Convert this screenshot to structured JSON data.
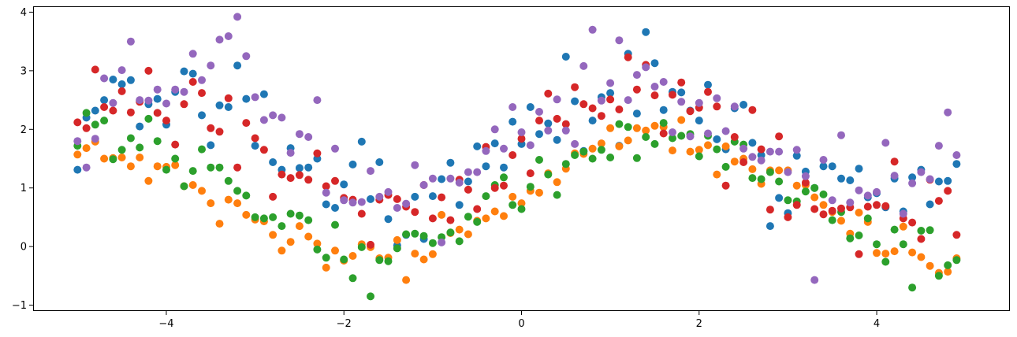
{
  "chart_data": {
    "type": "scatter",
    "title": "",
    "xlabel": "",
    "ylabel": "",
    "xlim": [
      -5.5,
      5.5
    ],
    "ylim": [
      -1.1,
      4.1
    ],
    "xticks": [
      -4,
      -2,
      0,
      2,
      4
    ],
    "xtick_labels": [
      "−4",
      "−2",
      "0",
      "2",
      "4"
    ],
    "yticks": [
      -1,
      0,
      1,
      2,
      3,
      4
    ],
    "ytick_labels": [
      "−1",
      "0",
      "1",
      "2",
      "3",
      "4"
    ],
    "grid": false,
    "legend": "none",
    "colors": [
      "#1f77b4",
      "#ff7f0e",
      "#2ca02c",
      "#d62728",
      "#9467bd"
    ],
    "x": [
      -5.0,
      -4.9,
      -4.8,
      -4.7,
      -4.6,
      -4.5,
      -4.4,
      -4.3,
      -4.2,
      -4.1,
      -4.0,
      -3.9,
      -3.8,
      -3.7,
      -3.6,
      -3.5,
      -3.4,
      -3.3,
      -3.2,
      -3.1,
      -3.0,
      -2.9,
      -2.8,
      -2.7,
      -2.6,
      -2.5,
      -2.4,
      -2.3,
      -2.2,
      -2.1,
      -2.0,
      -1.9,
      -1.8,
      -1.7,
      -1.6,
      -1.5,
      -1.4,
      -1.3,
      -1.2,
      -1.1,
      -1.0,
      -0.9,
      -0.8,
      -0.7,
      -0.6,
      -0.5,
      -0.4,
      -0.3,
      -0.2,
      -0.1,
      0.0,
      0.1,
      0.2,
      0.3,
      0.4,
      0.5,
      0.6,
      0.7,
      0.8,
      0.9,
      1.0,
      1.1,
      1.2,
      1.3,
      1.4,
      1.5,
      1.6,
      1.7,
      1.8,
      1.9,
      2.0,
      2.1,
      2.2,
      2.3,
      2.4,
      2.5,
      2.6,
      2.7,
      2.8,
      2.9,
      3.0,
      3.1,
      3.2,
      3.3,
      3.4,
      3.5,
      3.6,
      3.7,
      3.8,
      3.9,
      4.0,
      4.1,
      4.2,
      4.3,
      4.4,
      4.5,
      4.6,
      4.7,
      4.8,
      4.9,
      5.0
    ],
    "series": [
      {
        "values": [
          1.31,
          2.2,
          2.32,
          2.5,
          2.85,
          2.77,
          2.84,
          2.05,
          2.43,
          2.52,
          2.08,
          2.64,
          2.99,
          2.95,
          2.24,
          1.73,
          2.41,
          2.38,
          3.09,
          2.52,
          1.72,
          2.6,
          1.44,
          1.31,
          1.68,
          1.34,
          1.35,
          1.5,
          0.72,
          0.66,
          1.06,
          1.4,
          1.79,
          0.81,
          1.44,
          0.47,
          0.02,
          0.2,
          0.85,
          0.13,
          0.86,
          1.15,
          1.43,
          0.71,
          1.11,
          1.71,
          1.37,
          1.76,
          1.35,
          2.13,
          1.75,
          2.38,
          1.92,
          2.1,
          1.82,
          3.24,
          2.48,
          1.63,
          2.15,
          2.55,
          2.62,
          1.72,
          3.29,
          2.27,
          3.66,
          3.13,
          2.33,
          2.64,
          2.63,
          2.32,
          2.15,
          2.76,
          1.83,
          1.66,
          2.36,
          2.42,
          1.77,
          1.56,
          0.35,
          0.83,
          0.57,
          1.55,
          1.28,
          1.0,
          1.37,
          1.37,
          1.16,
          1.13,
          1.33,
          0.84,
          0.91,
          0.67,
          1.16,
          0.6,
          1.18,
          1.31,
          0.72,
          1.11,
          1.12,
          1.41
        ]
      },
      {
        "values": [
          1.57,
          1.68,
          1.79,
          1.5,
          1.51,
          1.52,
          1.37,
          1.52,
          1.12,
          1.37,
          1.36,
          1.39,
          1.03,
          1.05,
          0.95,
          0.74,
          0.39,
          0.8,
          0.74,
          0.54,
          0.46,
          0.43,
          0.2,
          -0.07,
          0.08,
          0.35,
          0.17,
          0.05,
          -0.36,
          -0.07,
          -0.24,
          -0.16,
          0.04,
          -0.01,
          -0.2,
          -0.19,
          0.11,
          -0.57,
          -0.12,
          -0.22,
          -0.13,
          0.54,
          0.23,
          0.29,
          0.21,
          0.44,
          0.48,
          0.6,
          0.52,
          0.85,
          0.74,
          0.95,
          0.92,
          1.25,
          1.1,
          1.33,
          1.59,
          1.58,
          1.67,
          1.76,
          2.02,
          1.71,
          1.81,
          2.02,
          1.98,
          2.06,
          2.04,
          1.64,
          2.16,
          1.62,
          1.65,
          1.73,
          1.23,
          1.71,
          1.45,
          1.5,
          1.32,
          1.07,
          1.3,
          1.3,
          1.3,
          1.04,
          1.05,
          0.84,
          0.71,
          0.59,
          0.44,
          0.22,
          0.58,
          0.42,
          -0.11,
          -0.12,
          -0.08,
          0.34,
          -0.1,
          -0.18,
          -0.33,
          -0.45,
          -0.43,
          -0.2
        ]
      },
      {
        "values": [
          1.72,
          2.28,
          2.08,
          2.15,
          1.49,
          1.65,
          1.85,
          1.69,
          2.18,
          1.8,
          1.31,
          1.5,
          1.03,
          1.29,
          1.66,
          1.35,
          1.35,
          1.12,
          0.95,
          0.87,
          0.5,
          0.48,
          0.5,
          0.35,
          0.56,
          0.53,
          0.45,
          -0.05,
          -0.19,
          0.37,
          -0.22,
          -0.54,
          -0.01,
          -0.85,
          -0.23,
          -0.25,
          -0.03,
          0.21,
          0.22,
          0.18,
          0.06,
          0.16,
          0.24,
          0.09,
          0.51,
          0.42,
          0.86,
          1.05,
          1.18,
          0.71,
          0.64,
          1.02,
          1.48,
          1.23,
          0.88,
          1.41,
          1.56,
          1.62,
          1.5,
          1.65,
          1.52,
          2.09,
          2.04,
          1.51,
          1.87,
          1.75,
          2.11,
          1.85,
          1.89,
          1.92,
          1.54,
          1.89,
          1.66,
          1.36,
          1.79,
          1.74,
          1.17,
          1.15,
          1.27,
          1.11,
          0.79,
          0.77,
          0.94,
          1.0,
          0.89,
          0.45,
          0.59,
          0.14,
          0.19,
          0.48,
          0.04,
          -0.26,
          0.29,
          0.04,
          -0.7,
          0.27,
          0.28,
          -0.5,
          -0.32,
          -0.23
        ]
      },
      {
        "values": [
          2.12,
          2.02,
          3.02,
          2.38,
          2.32,
          2.65,
          2.29,
          2.47,
          3.0,
          2.28,
          2.15,
          1.74,
          2.43,
          2.81,
          2.62,
          2.02,
          1.96,
          2.53,
          1.35,
          2.11,
          1.85,
          1.65,
          0.85,
          1.23,
          1.17,
          1.22,
          1.14,
          1.59,
          1.03,
          1.12,
          0.83,
          0.8,
          0.56,
          0.03,
          0.8,
          0.88,
          0.81,
          0.68,
          0.59,
          1.05,
          0.48,
          0.84,
          0.45,
          1.14,
          0.97,
          0.64,
          1.7,
          1.0,
          1.04,
          1.56,
          1.84,
          1.25,
          2.15,
          2.61,
          2.18,
          2.09,
          2.72,
          2.43,
          2.36,
          2.23,
          2.51,
          2.34,
          3.23,
          2.68,
          3.1,
          2.58,
          1.93,
          2.59,
          2.8,
          2.31,
          2.37,
          2.64,
          2.39,
          1.04,
          1.87,
          1.44,
          2.33,
          1.66,
          0.63,
          1.88,
          0.5,
          0.71,
          1.09,
          0.64,
          0.55,
          0.61,
          0.65,
          0.67,
          -0.13,
          0.68,
          0.71,
          0.69,
          1.45,
          0.48,
          0.41,
          0.13,
          1.14,
          0.78,
          0.95,
          0.2
        ]
      },
      {
        "values": [
          1.8,
          1.35,
          1.84,
          2.87,
          2.45,
          3.01,
          3.5,
          2.5,
          2.49,
          2.68,
          2.44,
          2.68,
          2.64,
          3.29,
          2.84,
          3.09,
          3.53,
          3.59,
          3.92,
          3.25,
          2.55,
          2.16,
          2.24,
          2.2,
          1.6,
          1.92,
          1.87,
          2.5,
          0.92,
          1.67,
          0.79,
          0.75,
          0.76,
          1.29,
          0.85,
          0.93,
          0.66,
          0.73,
          1.39,
          1.05,
          1.16,
          0.07,
          1.16,
          1.09,
          1.27,
          1.27,
          1.63,
          2.0,
          1.67,
          2.38,
          1.95,
          1.73,
          2.3,
          1.98,
          2.51,
          1.98,
          1.75,
          3.08,
          3.7,
          2.49,
          2.79,
          3.52,
          2.5,
          2.93,
          3.06,
          2.73,
          2.81,
          1.95,
          2.47,
          1.88,
          2.45,
          1.93,
          2.53,
          1.97,
          2.39,
          1.67,
          1.53,
          1.47,
          1.62,
          1.62,
          1.27,
          1.65,
          1.2,
          -0.57,
          1.48,
          0.79,
          1.9,
          0.75,
          0.96,
          0.87,
          0.93,
          1.77,
          1.21,
          0.56,
          1.08,
          1.27,
          1.15,
          1.72,
          2.29,
          1.56
        ]
      }
    ]
  }
}
